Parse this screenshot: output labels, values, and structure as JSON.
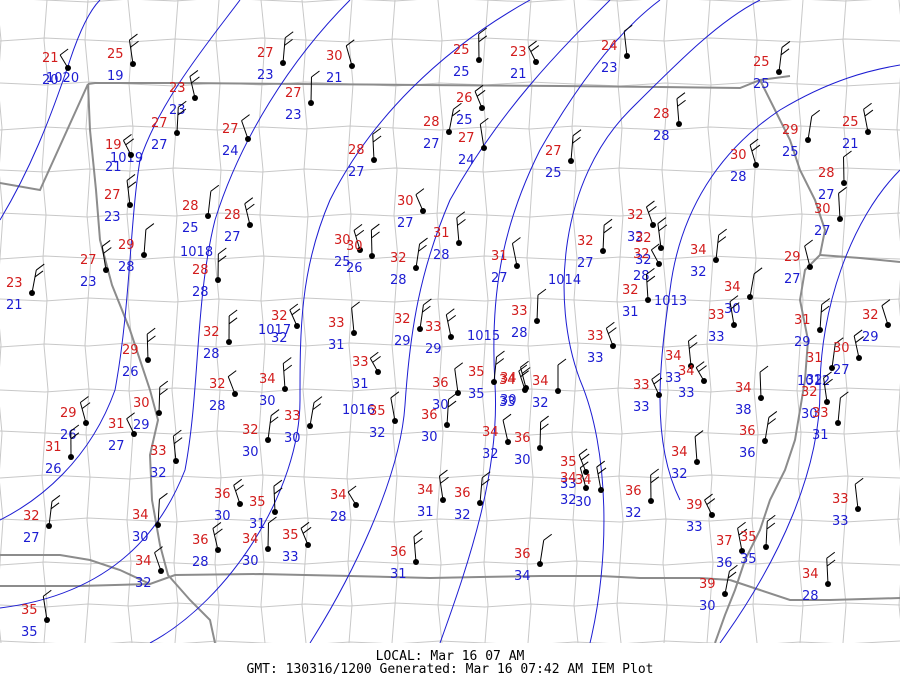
{
  "footer": {
    "local": "LOCAL: Mar 16 07 AM",
    "gmt": "GMT: 130316/1200 Generated: Mar 16 07:42 AM IEM Plot"
  },
  "isobar_labels": [
    "1020",
    "1019",
    "1018",
    "1017",
    "1016",
    "1015",
    "1014",
    "1013",
    "1012"
  ],
  "stations": [
    {
      "t": "21",
      "d": "20"
    },
    {
      "t": "25",
      "d": "19"
    },
    {
      "t": "27",
      "d": "23"
    },
    {
      "t": "30",
      "d": "21"
    },
    {
      "t": "25",
      "d": "25"
    },
    {
      "t": "23",
      "d": "21"
    },
    {
      "t": "24",
      "d": "23"
    },
    {
      "t": "25",
      "d": "25"
    },
    {
      "t": "23",
      "d": "23"
    },
    {
      "t": "27",
      "d": "23"
    },
    {
      "t": "26",
      "d": "25"
    },
    {
      "t": "28",
      "d": "28"
    },
    {
      "t": "29",
      "d": "25"
    },
    {
      "t": "25",
      "d": "21"
    },
    {
      "t": "27",
      "d": "27"
    },
    {
      "t": "27",
      "d": "24"
    },
    {
      "t": "28",
      "d": "27"
    },
    {
      "t": "28",
      "d": "27"
    },
    {
      "t": "27",
      "d": "24"
    },
    {
      "t": "27",
      "d": "25"
    },
    {
      "t": "30",
      "d": "28"
    },
    {
      "t": "28",
      "d": "27"
    },
    {
      "t": "19",
      "d": "21"
    },
    {
      "t": "27",
      "d": "23"
    },
    {
      "t": "28",
      "d": "25"
    },
    {
      "t": "28",
      "d": "27"
    },
    {
      "t": "28",
      "d": "28"
    },
    {
      "t": "30",
      "d": "27"
    },
    {
      "t": "31",
      "d": "28"
    },
    {
      "t": "32",
      "d": "28"
    },
    {
      "t": "31",
      "d": "27"
    },
    {
      "t": "32",
      "d": "27"
    },
    {
      "t": "32",
      "d": "32"
    },
    {
      "t": "30",
      "d": "27"
    },
    {
      "t": "23",
      "d": "21"
    },
    {
      "t": "27",
      "d": "23"
    },
    {
      "t": "29",
      "d": "28"
    },
    {
      "t": "30",
      "d": "25"
    },
    {
      "t": "30",
      "d": "26"
    },
    {
      "t": "32",
      "d": "28"
    },
    {
      "t": "32",
      "d": "32"
    },
    {
      "t": "34",
      "d": "32"
    },
    {
      "t": "29",
      "d": "27"
    },
    {
      "t": "32",
      "d": "28"
    },
    {
      "t": "32",
      "d": "32"
    },
    {
      "t": "33",
      "d": "31"
    },
    {
      "t": "32",
      "d": "29"
    },
    {
      "t": "33",
      "d": "29"
    },
    {
      "t": "33",
      "d": "28"
    },
    {
      "t": "33",
      "d": "33"
    },
    {
      "t": "32",
      "d": "31"
    },
    {
      "t": "34",
      "d": "30"
    },
    {
      "t": "33",
      "d": "33"
    },
    {
      "t": "31",
      "d": "29"
    },
    {
      "t": "32",
      "d": "29"
    },
    {
      "t": "29",
      "d": "26"
    },
    {
      "t": "33",
      "d": "31"
    },
    {
      "t": "36",
      "d": "30"
    },
    {
      "t": "35",
      "d": "35"
    },
    {
      "t": "34",
      "d": "30"
    },
    {
      "t": "34",
      "d": "32"
    },
    {
      "t": "33",
      "d": "33"
    },
    {
      "t": "34",
      "d": "33"
    },
    {
      "t": "31",
      "d": "32"
    },
    {
      "t": "30",
      "d": "27"
    },
    {
      "t": "30",
      "d": "29"
    },
    {
      "t": "32",
      "d": "28"
    },
    {
      "t": "34",
      "d": "30"
    },
    {
      "t": "33",
      "d": "30"
    },
    {
      "t": "35",
      "d": "32"
    },
    {
      "t": "36",
      "d": "30"
    },
    {
      "t": "34",
      "d": "33"
    },
    {
      "t": "34",
      "d": "38"
    },
    {
      "t": "34",
      "d": "33"
    },
    {
      "t": "32",
      "d": "30"
    },
    {
      "t": "33",
      "d": "31"
    },
    {
      "t": "29",
      "d": "26"
    },
    {
      "t": "31",
      "d": "26"
    },
    {
      "t": "31",
      "d": "27"
    },
    {
      "t": "33",
      "d": "32"
    },
    {
      "t": "32",
      "d": "30"
    },
    {
      "t": "34",
      "d": "32"
    },
    {
      "t": "36",
      "d": "30"
    },
    {
      "t": "35",
      "d": "33"
    },
    {
      "t": "34",
      "d": "32"
    },
    {
      "t": "36",
      "d": "36"
    },
    {
      "t": "34",
      "d": "30"
    },
    {
      "t": "34",
      "d": "30"
    },
    {
      "t": "36",
      "d": "30"
    },
    {
      "t": "35",
      "d": "31"
    },
    {
      "t": "34",
      "d": "28"
    },
    {
      "t": "34",
      "d": "31"
    },
    {
      "t": "36",
      "d": "32"
    },
    {
      "t": "34",
      "d": "32"
    },
    {
      "t": "36",
      "d": "32"
    },
    {
      "t": "39",
      "d": "33"
    },
    {
      "t": "33",
      "d": "33"
    },
    {
      "t": "32",
      "d": "27"
    },
    {
      "t": "36",
      "d": "28"
    },
    {
      "t": "34",
      "d": "30"
    },
    {
      "t": "35",
      "d": "33"
    },
    {
      "t": "36",
      "d": "31"
    },
    {
      "t": "36",
      "d": "34"
    },
    {
      "t": "37",
      "d": "36"
    },
    {
      "t": "35",
      "d": "35"
    },
    {
      "t": "34",
      "d": "32"
    },
    {
      "t": "34",
      "d": "28"
    },
    {
      "t": "39",
      "d": "30"
    },
    {
      "t": "35",
      "d": "35"
    }
  ]
}
